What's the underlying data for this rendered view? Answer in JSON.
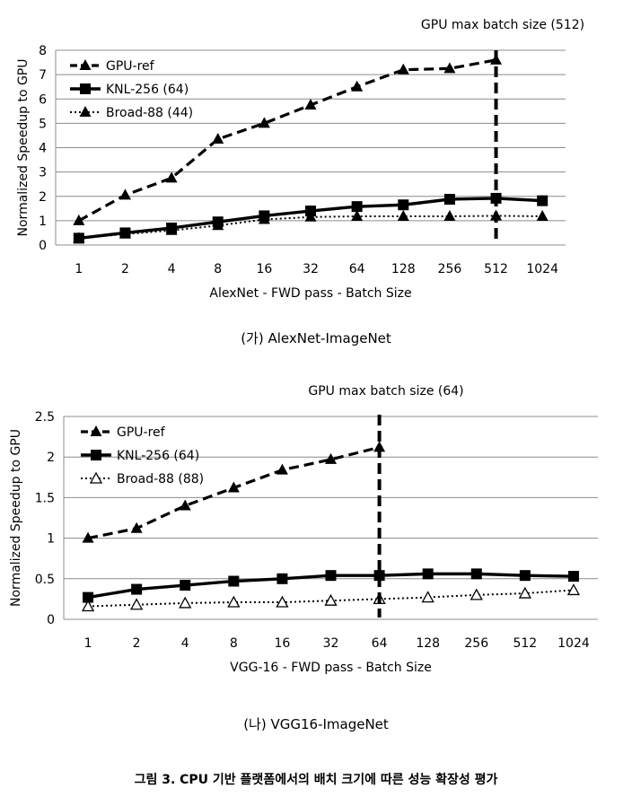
{
  "chart_data": [
    {
      "type": "line",
      "categories": [
        "1",
        "2",
        "4",
        "8",
        "16",
        "32",
        "64",
        "128",
        "256",
        "512",
        "1024"
      ],
      "ylabel": "Normalized Speedup to GPU",
      "xlabel": "AlexNet - FWD pass - Batch Size",
      "ylim": [
        0,
        8
      ],
      "yticks": [
        "0",
        "1",
        "2",
        "3",
        "4",
        "5",
        "6",
        "7",
        "8"
      ],
      "grid": "horizontal",
      "legend_position": "top-left",
      "annotation": "GPU max batch size (512)",
      "vline_category": "512",
      "series": [
        {
          "name": "GPU-ref",
          "style": "dashed",
          "marker": "triangle-filled",
          "values": [
            1.0,
            2.05,
            2.75,
            4.35,
            5.0,
            5.75,
            6.5,
            7.2,
            7.25,
            7.6,
            null
          ]
        },
        {
          "name": "KNL-256 (64)",
          "style": "solid",
          "marker": "square-filled",
          "values": [
            0.28,
            0.5,
            0.7,
            0.95,
            1.2,
            1.4,
            1.58,
            1.65,
            1.88,
            1.92,
            1.82
          ]
        },
        {
          "name": "Broad-88 (44)",
          "style": "dotted",
          "marker": "triangle-filled",
          "values": [
            0.28,
            0.45,
            0.6,
            0.8,
            1.05,
            1.15,
            1.18,
            1.18,
            1.18,
            1.2,
            1.18
          ]
        }
      ]
    },
    {
      "type": "line",
      "categories": [
        "1",
        "2",
        "4",
        "8",
        "16",
        "32",
        "64",
        "128",
        "256",
        "512",
        "1024"
      ],
      "ylabel": "Normalized Speedup to GPU",
      "xlabel": "VGG-16 - FWD pass - Batch Size",
      "ylim": [
        0,
        2.5
      ],
      "yticks": [
        "0",
        "0.5",
        "1",
        "1.5",
        "2",
        "2.5"
      ],
      "grid": "horizontal",
      "legend_position": "top-left",
      "annotation": "GPU max batch size (64)",
      "vline_category": "64",
      "series": [
        {
          "name": "GPU-ref",
          "style": "dashed",
          "marker": "triangle-filled",
          "values": [
            1.0,
            1.12,
            1.4,
            1.62,
            1.84,
            1.97,
            2.12,
            null,
            null,
            null,
            null
          ]
        },
        {
          "name": "KNL-256 (64)",
          "style": "solid",
          "marker": "square-filled",
          "values": [
            0.27,
            0.37,
            0.42,
            0.47,
            0.5,
            0.54,
            0.54,
            0.56,
            0.56,
            0.54,
            0.53
          ]
        },
        {
          "name": "Broad-88 (88)",
          "style": "dotted",
          "marker": "triangle-open",
          "values": [
            0.16,
            0.18,
            0.2,
            0.21,
            0.21,
            0.23,
            0.25,
            0.27,
            0.3,
            0.32,
            0.36
          ]
        }
      ]
    }
  ],
  "captions": {
    "top": "(가) AlexNet-ImageNet",
    "bottom": "(나) VGG16-ImageNet",
    "figure": "그림 3. CPU 기반 플랫폼에서의 배치 크기에 따른 성능 확장성 평가"
  }
}
